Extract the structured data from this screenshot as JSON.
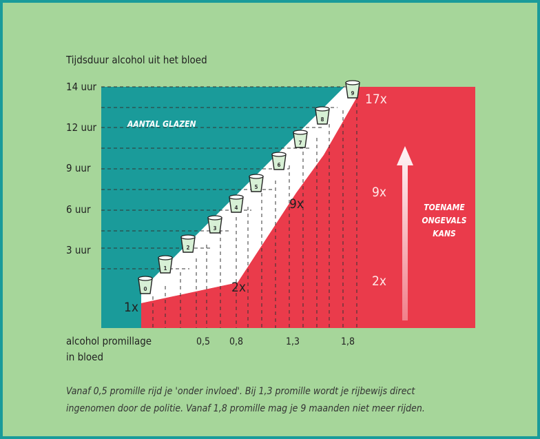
{
  "colors": {
    "background": "#a6d69a",
    "border": "#1a9b9a",
    "teal": "#1a9b9a",
    "red": "#ea3b4b",
    "white": "#ffffff"
  },
  "chart_data": {
    "type": "area",
    "title": "Tijdsduur alcohol uit het bloed",
    "xlabel_line1": "alcohol promillage",
    "xlabel_line2": "in bloed",
    "x_ticks": [
      "0,5",
      "0,8",
      "1,3",
      "1,8"
    ],
    "y_ticks": [
      "3 uur",
      "6 uur",
      "9 uur",
      "12 uur",
      "14 uur"
    ],
    "glasses_label": "AANTAL GLAZEN",
    "glasses": [
      "0",
      "1",
      "2",
      "3",
      "4",
      "5",
      "6",
      "7",
      "8",
      "9"
    ],
    "risk_labels": [
      "1x",
      "2x",
      "9x",
      "17x"
    ],
    "risk_scale_labels": [
      "2x",
      "9x"
    ],
    "arrow_text": [
      "TOENAME",
      "ONGEVALS",
      "KANS"
    ],
    "grid": true
  },
  "footer": {
    "line1": "Vanaf 0,5 promille rijd je 'onder invloed'. Bij 1,3 promille wordt je rijbewijs direct",
    "line2": "ingenomen door de politie. Vanaf 1,8 promille mag je 9 maanden niet meer rijden."
  }
}
